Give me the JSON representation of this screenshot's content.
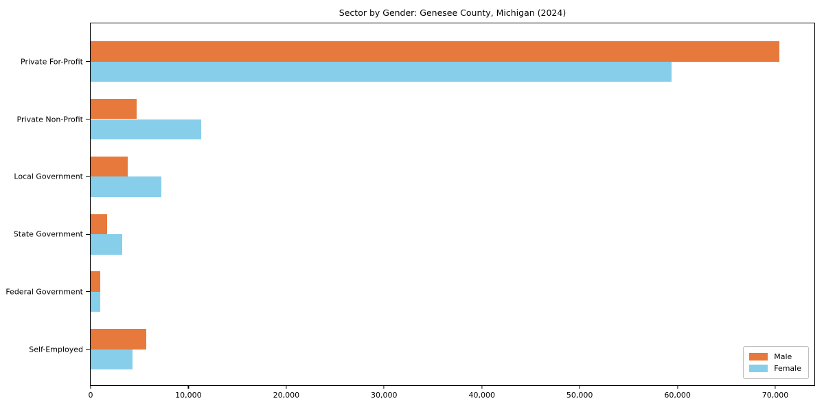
{
  "chart_data": {
    "type": "bar",
    "orientation": "horizontal",
    "title": "Sector by Gender: Genesee County, Michigan (2024)",
    "xlabel": "",
    "ylabel": "",
    "categories": [
      "Private For-Profit",
      "Private Non-Profit",
      "Local Government",
      "State Government",
      "Federal Government",
      "Self-Employed"
    ],
    "series": [
      {
        "name": "Male",
        "color": "#E8793D",
        "values": [
          70400,
          4700,
          3800,
          1700,
          1000,
          5700
        ]
      },
      {
        "name": "Female",
        "color": "#87CEEB",
        "values": [
          59400,
          11300,
          7200,
          3200,
          950,
          4300
        ]
      }
    ],
    "xlim": [
      0,
      74000
    ],
    "xticks": [
      0,
      10000,
      20000,
      30000,
      40000,
      50000,
      60000,
      70000
    ],
    "xtick_labels": [
      "0",
      "10,000",
      "20,000",
      "30,000",
      "40,000",
      "50,000",
      "60,000",
      "70,000"
    ],
    "grid": false,
    "legend": {
      "position": "lower right",
      "entries": [
        "Male",
        "Female"
      ]
    }
  }
}
